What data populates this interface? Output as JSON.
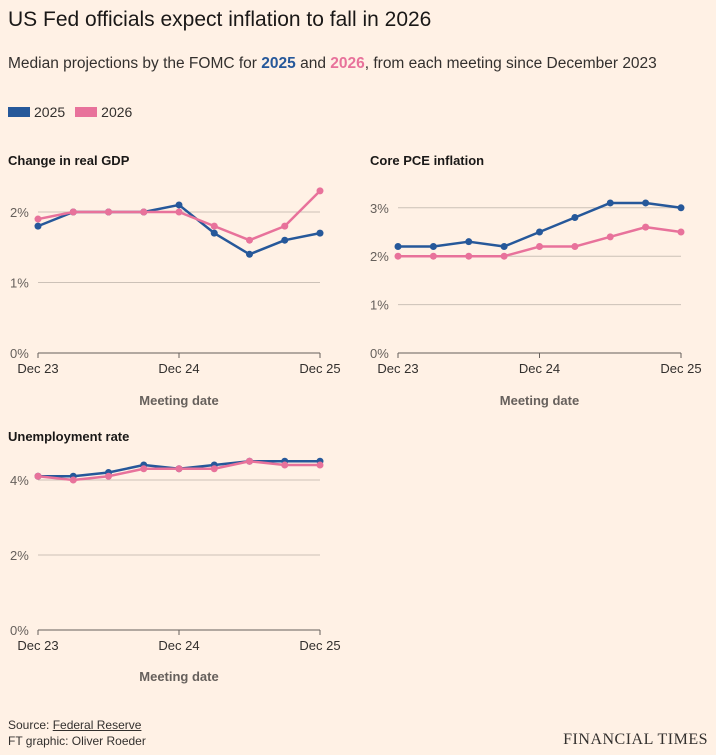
{
  "title": "US Fed officials expect inflation to fall in 2026",
  "subtitle": {
    "prefix": "Median projections by the FOMC for ",
    "a": "2025",
    "mid": " and ",
    "b": "2026",
    "suffix": ", from each meeting since December 2023"
  },
  "colors": {
    "2025": "#26589a",
    "2026": "#e8729b",
    "background": "#FFF1E5"
  },
  "legend": [
    {
      "label": "2025"
    },
    {
      "label": "2026"
    }
  ],
  "chart_data": [
    {
      "type": "line",
      "title": "Change in real GDP",
      "xlabel": "Meeting date",
      "x_ticks": [
        "Dec 23",
        "Dec 24",
        "Dec 25"
      ],
      "y_ticks": [
        "0%",
        "1%",
        "2%"
      ],
      "ylim": [
        0,
        2.4
      ],
      "grid": true,
      "series": [
        {
          "name": "2025",
          "values": [
            1.8,
            2.0,
            2.0,
            2.0,
            2.1,
            1.7,
            1.4,
            1.6,
            1.7
          ]
        },
        {
          "name": "2026",
          "values": [
            1.9,
            2.0,
            2.0,
            2.0,
            2.0,
            1.8,
            1.6,
            1.8,
            2.3
          ]
        }
      ]
    },
    {
      "type": "line",
      "title": "Core PCE inflation",
      "xlabel": "Meeting date",
      "x_ticks": [
        "Dec 23",
        "Dec 24",
        "Dec 25"
      ],
      "y_ticks": [
        "0%",
        "1%",
        "2%",
        "3%"
      ],
      "ylim": [
        0,
        3.2
      ],
      "grid": true,
      "series": [
        {
          "name": "2025",
          "values": [
            2.2,
            2.2,
            2.3,
            2.2,
            2.5,
            2.8,
            3.1,
            3.1,
            3.0
          ]
        },
        {
          "name": "2026",
          "values": [
            2.0,
            2.0,
            2.0,
            2.0,
            2.2,
            2.2,
            2.4,
            2.6,
            2.5
          ]
        }
      ]
    },
    {
      "type": "line",
      "title": "Unemployment rate",
      "xlabel": "Meeting date",
      "x_ticks": [
        "Dec 23",
        "Dec 24",
        "Dec 25"
      ],
      "y_ticks": [
        "0%",
        "2%",
        "4%"
      ],
      "ylim": [
        0,
        4.6
      ],
      "grid": true,
      "series": [
        {
          "name": "2025",
          "values": [
            4.1,
            4.1,
            4.2,
            4.4,
            4.3,
            4.4,
            4.5,
            4.5,
            4.5
          ]
        },
        {
          "name": "2026",
          "values": [
            4.1,
            4.0,
            4.1,
            4.3,
            4.3,
            4.3,
            4.5,
            4.4,
            4.4
          ]
        }
      ]
    }
  ],
  "footer": {
    "source_prefix": "Source: ",
    "source_link": "Federal Reserve",
    "credit": "FT graphic: Oliver Roeder"
  },
  "logo": "FINANCIAL TIMES"
}
